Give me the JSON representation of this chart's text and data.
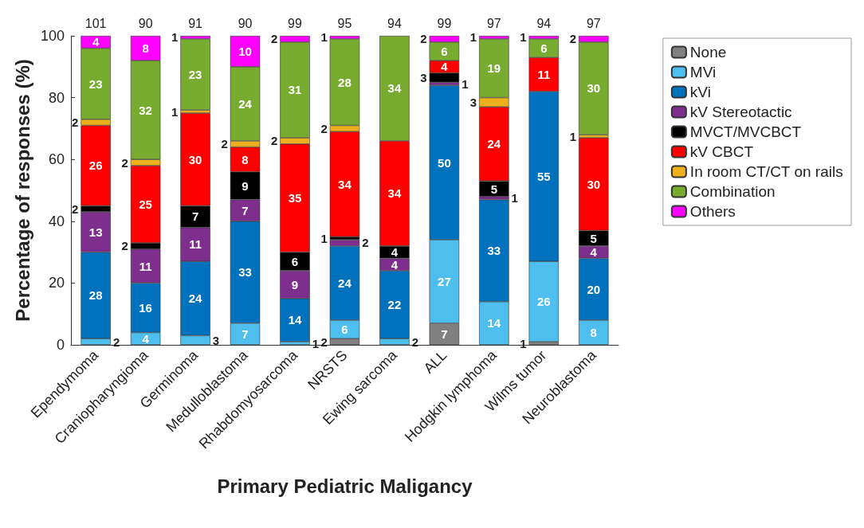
{
  "chart_data": {
    "type": "bar",
    "stacked": true,
    "xlabel": "Primary Pediatric Maligancy",
    "ylabel": "Percentage of responses (%)",
    "categories": [
      "Ependymoma",
      "Craniopharyngioma",
      "Germinoma",
      "Medulloblastoma",
      "Rhabdomyosarcoma",
      "NRSTS",
      "Ewing sarcoma",
      "ALL",
      "Hodgkin lymphoma",
      "Wilms tumor",
      "Neuroblastoma"
    ],
    "series": [
      {
        "name": "None",
        "color": "#808080",
        "values": [
          null,
          null,
          null,
          null,
          null,
          2,
          null,
          7,
          null,
          1,
          null
        ]
      },
      {
        "name": "MVi",
        "color": "#4dbeee",
        "values": [
          2,
          4,
          3,
          7,
          1,
          6,
          2,
          27,
          14,
          26,
          8
        ]
      },
      {
        "name": "kVi",
        "color": "#0072bd",
        "values": [
          28,
          16,
          24,
          33,
          14,
          24,
          22,
          50,
          33,
          55,
          20
        ]
      },
      {
        "name": "kV Stereotactic",
        "color": "#7e2f8e",
        "values": [
          13,
          11,
          11,
          7,
          9,
          2,
          4,
          1,
          1,
          null,
          4
        ]
      },
      {
        "name": "MVCT/MVCBCT",
        "color": "#000000",
        "values": [
          2,
          2,
          7,
          9,
          6,
          1,
          4,
          3,
          5,
          null,
          5
        ]
      },
      {
        "name": "kV CBCT",
        "color": "#ff0000",
        "values": [
          26,
          25,
          30,
          8,
          35,
          34,
          34,
          4,
          24,
          11,
          30
        ]
      },
      {
        "name": "In room CT/CT on rails",
        "color": "#edb120",
        "values": [
          2,
          2,
          1,
          2,
          2,
          2,
          null,
          null,
          3,
          null,
          1
        ]
      },
      {
        "name": "Combination",
        "color": "#77ac30",
        "values": [
          23,
          32,
          23,
          24,
          31,
          28,
          34,
          6,
          19,
          6,
          30
        ]
      },
      {
        "name": "Others",
        "color": "#ff00ff",
        "values": [
          4,
          8,
          1,
          10,
          2,
          1,
          null,
          2,
          1,
          1,
          2
        ]
      }
    ],
    "annotations": [
      "101",
      "90",
      "91",
      "90",
      "99",
      "95",
      "94",
      "99",
      "97",
      "94",
      "97"
    ],
    "data_labels": true,
    "ylim": [
      0,
      100
    ],
    "yticks": [
      0,
      20,
      40,
      60,
      80,
      100
    ],
    "grid": false,
    "legend": "right"
  }
}
